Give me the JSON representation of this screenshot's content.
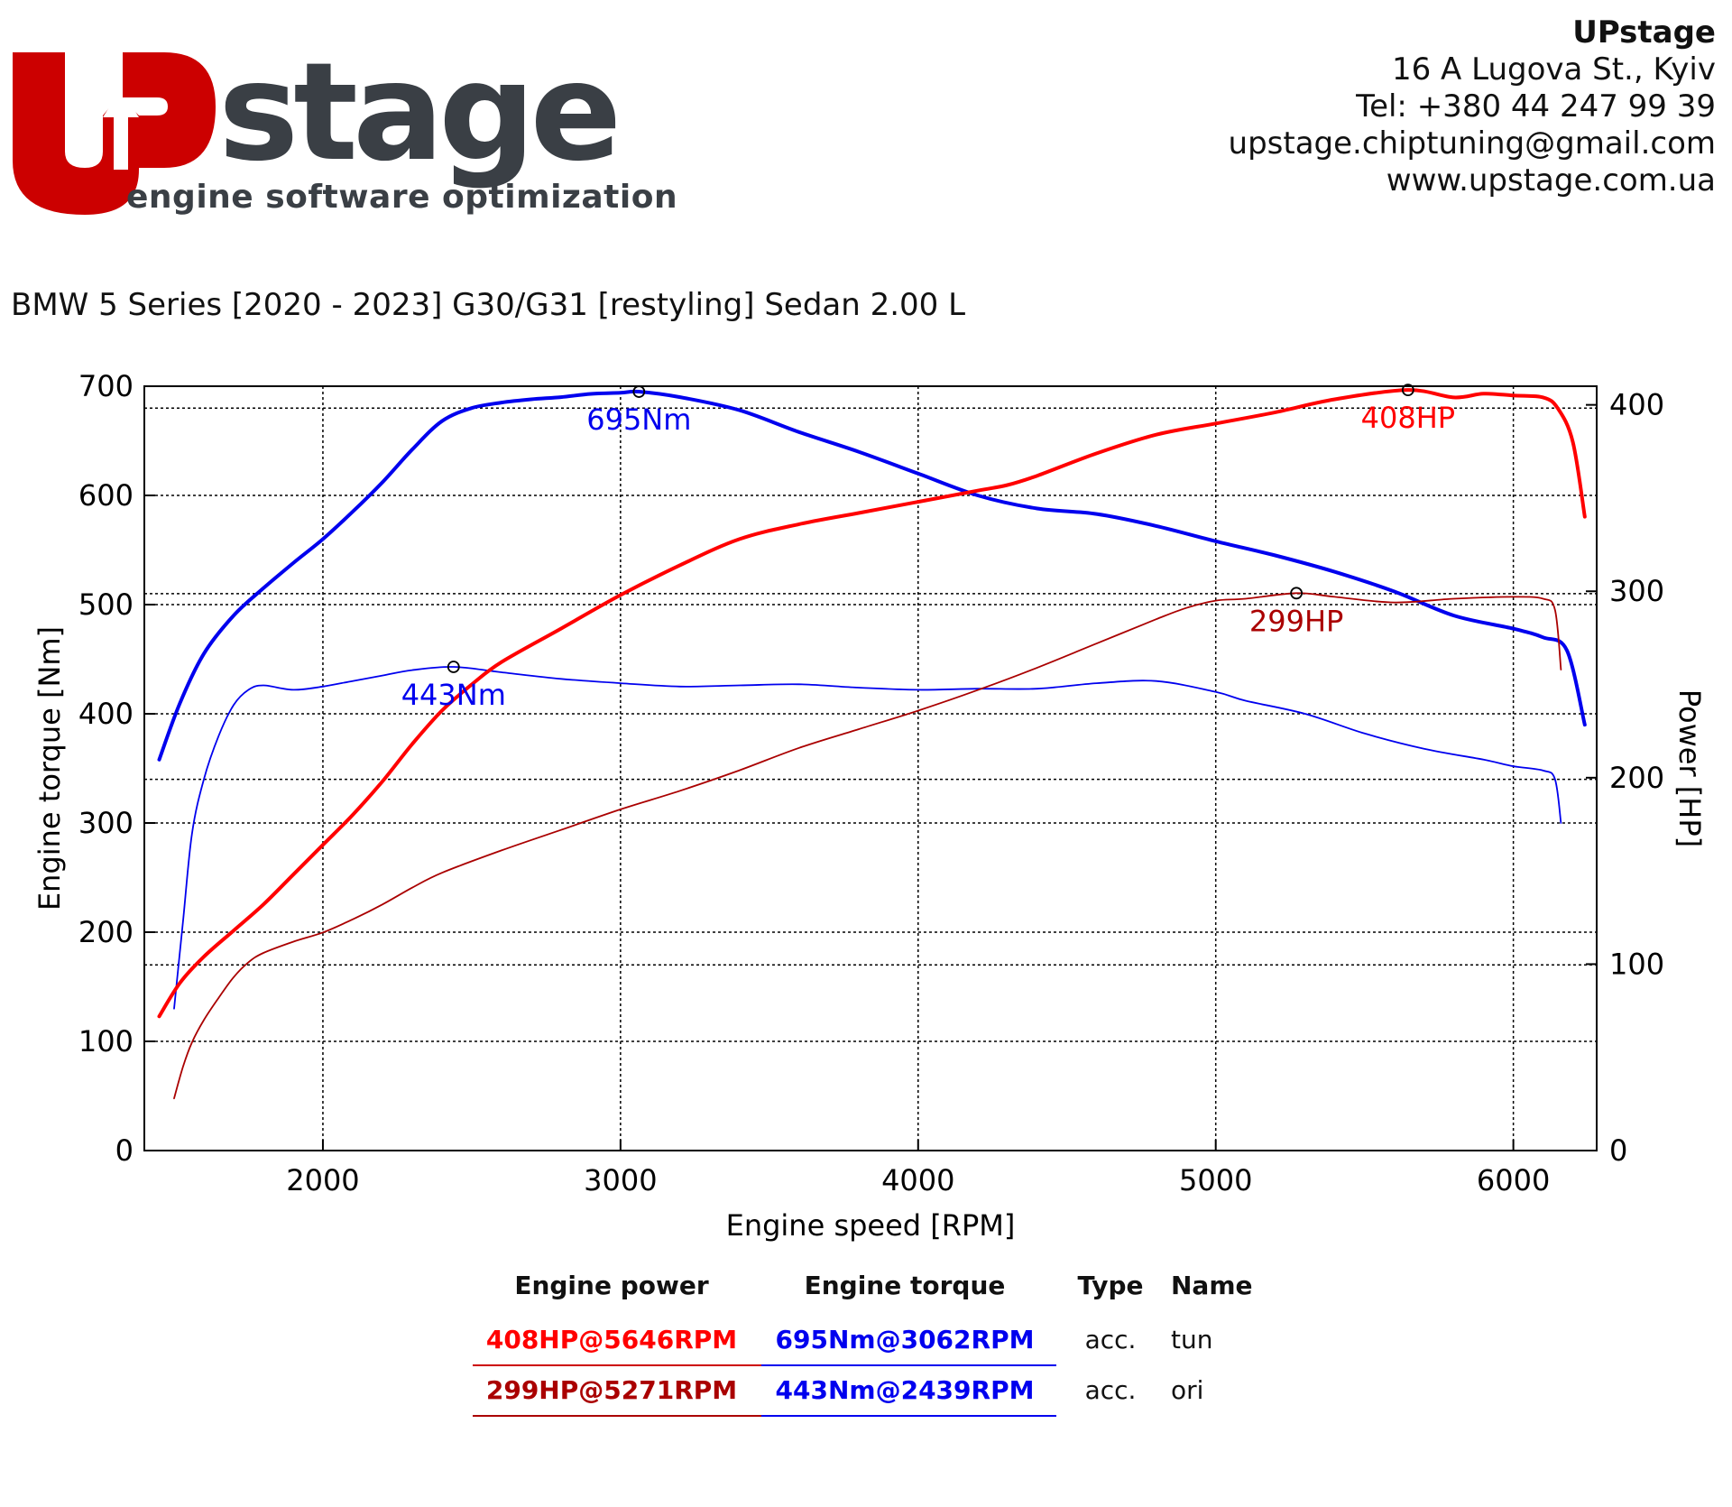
{
  "header": {
    "logo_main": "stage",
    "logo_tagline": "engine software optimization",
    "company_name": "UPstage",
    "address": "16 A Lugova St., Kyiv",
    "phone": "Tel: +380 44 247 99 39",
    "email": "upstage.chiptuning@gmail.com",
    "website": "www.upstage.com.ua"
  },
  "vehicle_title": "BMW 5 Series [2020 - 2023] G30/G31 [restyling] Sedan 2.00 L",
  "colors": {
    "logo_red": "#cc0000",
    "logo_gray": "#3a3f45",
    "power_tuned": "#ff0000",
    "power_original": "#aa0000",
    "torque": "#0000ee"
  },
  "chart_data": {
    "type": "line",
    "xlabel": "Engine speed [RPM]",
    "ylabel_left": "Engine torque [Nm]",
    "ylabel_right": "Power [HP]",
    "xlim": [
      1400,
      6280
    ],
    "ylim_left": [
      0,
      700
    ],
    "ylim_right": [
      0,
      410
    ],
    "x_ticks": [
      2000,
      3000,
      4000,
      5000,
      6000
    ],
    "y_ticks_left": [
      0,
      100,
      200,
      300,
      400,
      500,
      600,
      700
    ],
    "y_ticks_right": [
      0,
      100,
      200,
      300,
      400
    ],
    "grid": true,
    "series": [
      {
        "name": "tun torque",
        "axis": "left",
        "color": "#0000ee",
        "width": 4,
        "x": [
          1450,
          1520,
          1600,
          1700,
          1800,
          1900,
          2000,
          2100,
          2200,
          2300,
          2400,
          2500,
          2600,
          2700,
          2800,
          2900,
          3000,
          3062,
          3200,
          3400,
          3600,
          3800,
          4000,
          4200,
          4400,
          4600,
          4800,
          5000,
          5200,
          5400,
          5600,
          5800,
          6000,
          6100,
          6180,
          6240
        ],
        "y": [
          358,
          410,
          455,
          490,
          515,
          538,
          560,
          585,
          612,
          642,
          668,
          680,
          685,
          688,
          690,
          693,
          694,
          695,
          690,
          678,
          658,
          640,
          620,
          600,
          588,
          583,
          572,
          558,
          545,
          530,
          512,
          490,
          478,
          470,
          458,
          390
        ]
      },
      {
        "name": "ori torque",
        "axis": "left",
        "color": "#0000ee",
        "width": 1.8,
        "x": [
          1500,
          1530,
          1560,
          1600,
          1650,
          1700,
          1750,
          1800,
          1900,
          2000,
          2100,
          2200,
          2300,
          2439,
          2600,
          2800,
          3000,
          3200,
          3400,
          3600,
          3800,
          4000,
          4200,
          4400,
          4600,
          4800,
          5000,
          5100,
          5300,
          5500,
          5700,
          5900,
          6000,
          6100,
          6140,
          6160
        ],
        "y": [
          130,
          210,
          290,
          340,
          380,
          408,
          422,
          426,
          422,
          425,
          430,
          435,
          440,
          443,
          438,
          432,
          428,
          425,
          426,
          427,
          424,
          422,
          423,
          423,
          428,
          430,
          420,
          412,
          400,
          382,
          368,
          358,
          352,
          348,
          340,
          300
        ]
      },
      {
        "name": "tun power",
        "axis": "right",
        "color": "#ff0000",
        "width": 4,
        "x": [
          1450,
          1520,
          1600,
          1700,
          1800,
          1900,
          2000,
          2100,
          2200,
          2300,
          2400,
          2500,
          2600,
          2800,
          3000,
          3200,
          3400,
          3600,
          3800,
          4000,
          4200,
          4300,
          4400,
          4600,
          4800,
          5000,
          5200,
          5400,
          5646,
          5800,
          5900,
          6000,
          6100,
          6150,
          6200,
          6240
        ],
        "y": [
          72,
          90,
          104,
          118,
          132,
          148,
          164,
          180,
          198,
          218,
          236,
          250,
          262,
          280,
          298,
          314,
          328,
          336,
          342,
          348,
          354,
          357,
          362,
          374,
          384,
          390,
          396,
          403,
          408,
          404,
          406,
          405,
          404,
          398,
          380,
          340
        ]
      },
      {
        "name": "ori power",
        "axis": "right",
        "color": "#aa0000",
        "width": 1.8,
        "x": [
          1500,
          1530,
          1560,
          1600,
          1650,
          1700,
          1750,
          1800,
          1900,
          2000,
          2100,
          2200,
          2300,
          2400,
          2600,
          2800,
          3000,
          3200,
          3400,
          3600,
          3800,
          4000,
          4200,
          4400,
          4600,
          4800,
          4900,
          5000,
          5100,
          5271,
          5400,
          5600,
          5800,
          6000,
          6100,
          6140,
          6160
        ],
        "y": [
          28,
          45,
          58,
          70,
          82,
          93,
          101,
          106,
          112,
          117,
          124,
          132,
          141,
          149,
          161,
          172,
          183,
          193,
          204,
          216,
          226,
          236,
          247,
          259,
          272,
          285,
          291,
          295,
          296,
          299,
          297,
          294,
          296,
          297,
          296,
          290,
          258
        ]
      }
    ],
    "peaks": [
      {
        "label": "695Nm",
        "x": 3062,
        "y": 695,
        "axis": "left",
        "color": "#0000ee"
      },
      {
        "label": "443Nm",
        "x": 2439,
        "y": 443,
        "axis": "left",
        "color": "#0000ee"
      },
      {
        "label": "408HP",
        "x": 5646,
        "y": 408,
        "axis": "right",
        "color": "#ff0000"
      },
      {
        "label": "299HP",
        "x": 5271,
        "y": 299,
        "axis": "right",
        "color": "#aa0000"
      }
    ],
    "ref_lines_left": [
      680,
      510,
      340,
      170
    ],
    "results_table": {
      "headers": [
        "Engine power",
        "Engine torque",
        "Type",
        "Name"
      ],
      "rows": [
        {
          "power": "408HP@5646RPM",
          "torque": "695Nm@3062RPM",
          "type": "acc.",
          "name": "tun",
          "power_color": "#ff0000"
        },
        {
          "power": "299HP@5271RPM",
          "torque": "443Nm@2439RPM",
          "type": "acc.",
          "name": "ori",
          "power_color": "#aa0000"
        }
      ]
    }
  }
}
